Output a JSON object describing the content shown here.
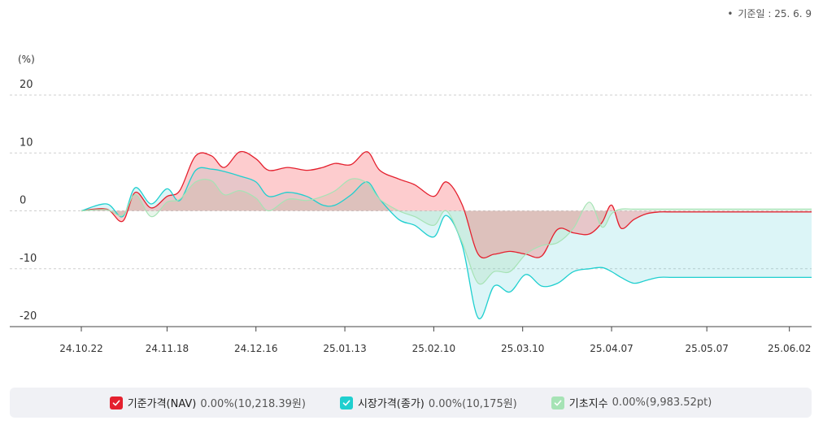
{
  "base_date": "기준일 : 25. 6. 9",
  "legend": [
    {
      "name": "기준가격(NAV)",
      "value": "0.00%(10,218.39원)",
      "color": "#e4202e",
      "icon": "check-icon"
    },
    {
      "name": "시장가격(종가)",
      "value": "0.00%(10,175원)",
      "color": "#1fcfcf",
      "icon": "check-icon"
    },
    {
      "name": "기초지수",
      "value": "0.00%(9,983.52pt)",
      "color": "#a6e3b5",
      "icon": "check-icon"
    }
  ],
  "chart_data": {
    "type": "area",
    "ylabel": "(%)",
    "ylim": [
      -20,
      20
    ],
    "yticks": [
      20,
      10,
      0,
      -10,
      -20
    ],
    "grid": true,
    "xlim": [
      "2024-10-22",
      "2025-06-09"
    ],
    "x_ticks": [
      {
        "label": "24.10.22",
        "date": "2024-10-22"
      },
      {
        "label": "24.11.18",
        "date": "2024-11-18"
      },
      {
        "label": "24.12.16",
        "date": "2024-12-16"
      },
      {
        "label": "25.01.13",
        "date": "2025-01-13"
      },
      {
        "label": "25.02.10",
        "date": "2025-02-10"
      },
      {
        "label": "25.03.10",
        "date": "2025-03-10"
      },
      {
        "label": "25.04.07",
        "date": "2025-04-07"
      },
      {
        "label": "25.05.07",
        "date": "2025-05-07"
      },
      {
        "label": "25.06.02",
        "date": "2025-06-02"
      }
    ],
    "x": [
      "2024-10-22",
      "2024-10-30",
      "2024-11-04",
      "2024-11-08",
      "2024-11-13",
      "2024-11-18",
      "2024-11-22",
      "2024-11-27",
      "2024-12-02",
      "2024-12-06",
      "2024-12-11",
      "2024-12-16",
      "2024-12-20",
      "2024-12-26",
      "2025-01-01",
      "2025-01-06",
      "2025-01-10",
      "2025-01-15",
      "2025-01-20",
      "2025-01-24",
      "2025-01-30",
      "2025-02-04",
      "2025-02-10",
      "2025-02-14",
      "2025-02-19",
      "2025-02-24",
      "2025-03-01",
      "2025-03-06",
      "2025-03-11",
      "2025-03-16",
      "2025-03-21",
      "2025-03-26",
      "2025-03-31",
      "2025-04-04",
      "2025-04-07",
      "2025-04-10",
      "2025-04-14",
      "2025-04-18",
      "2025-04-22",
      "2025-04-26",
      "2025-05-01",
      "2025-05-06",
      "2025-05-11",
      "2025-05-15",
      "2025-05-20",
      "2025-05-24",
      "2025-05-28",
      "2025-06-02",
      "2025-06-09"
    ],
    "series": [
      {
        "name": "기준가격(NAV)",
        "color": "#e4202e",
        "values": [
          0,
          0.3,
          -1.8,
          3.2,
          0.5,
          2.5,
          3.5,
          9.5,
          9.5,
          7.5,
          10.2,
          9.0,
          7.0,
          7.5,
          7.0,
          7.5,
          8.2,
          8.0,
          10.2,
          7.0,
          5.5,
          4.5,
          2.5,
          5.0,
          1.0,
          -7.5,
          -7.5,
          -7.0,
          -7.5,
          -7.8,
          -3.2,
          -3.8,
          -4.0,
          -2.0,
          1.0,
          -3.0,
          -1.5,
          -0.5,
          -0.2,
          -0.2,
          -0.2,
          -0.2,
          -0.2,
          -0.2,
          -0.2,
          -0.2,
          -0.2,
          -0.2,
          -0.2
        ]
      },
      {
        "name": "시장가격(종가)",
        "color": "#1fcfcf",
        "values": [
          0,
          1.2,
          -1.0,
          4.0,
          1.2,
          3.8,
          1.8,
          7.0,
          7.2,
          6.8,
          6.0,
          5.0,
          2.5,
          3.2,
          2.5,
          1.0,
          1.0,
          2.8,
          5.0,
          2.0,
          -1.5,
          -2.5,
          -4.5,
          -0.8,
          -6.0,
          -18.5,
          -13.0,
          -14.0,
          -11.0,
          -13.0,
          -12.5,
          -10.5,
          -10.0,
          -9.8,
          -10.5,
          -11.5,
          -12.5,
          -12.0,
          -11.5,
          -11.5,
          -11.5,
          -11.5,
          -11.5,
          -11.5,
          -11.5,
          -11.5,
          -11.5,
          -11.5,
          -11.5
        ]
      },
      {
        "name": "기초지수",
        "color": "#a6e3b5",
        "values": [
          0,
          0.2,
          -0.8,
          2.8,
          -1.0,
          1.5,
          2.0,
          5.0,
          5.2,
          2.8,
          3.5,
          2.2,
          0,
          2.0,
          1.8,
          2.5,
          3.5,
          5.5,
          4.8,
          2.0,
          0,
          -1.0,
          -2.5,
          0,
          -5.5,
          -12.5,
          -10.5,
          -10.5,
          -7.5,
          -6.0,
          -5.5,
          -3.0,
          1.5,
          -2.8,
          -0.5,
          0.3,
          0.3,
          0.3,
          0.3,
          0.3,
          0.3,
          0.3,
          0.3,
          0.3,
          0.3,
          0.3,
          0.3,
          0.3,
          0.3
        ]
      }
    ]
  }
}
